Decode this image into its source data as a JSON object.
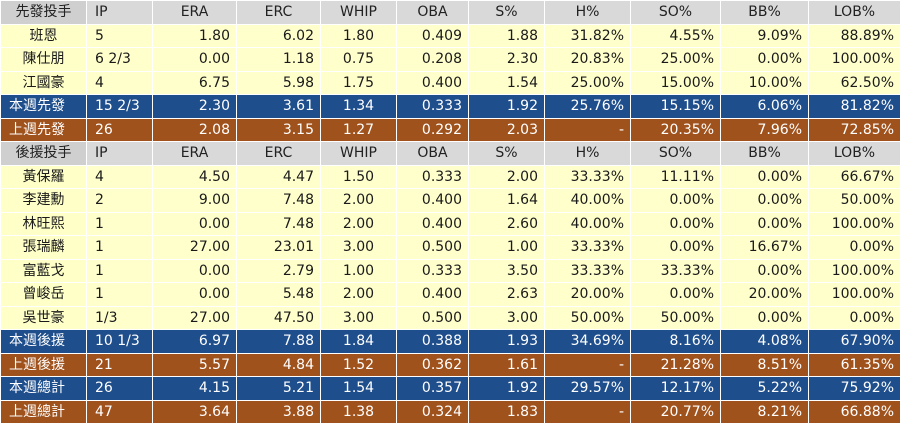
{
  "columns": [
    "IP",
    "ERA",
    "ERC",
    "WHIP",
    "OBA",
    "S%",
    "H%",
    "SO%",
    "BB%",
    "LOB%"
  ],
  "sections": [
    {
      "header": "先發投手",
      "rows": [
        [
          "班恩",
          "5",
          "1.80",
          "6.02",
          "1.80",
          "0.409",
          "1.88",
          "31.82%",
          "4.55%",
          "9.09%",
          "88.89%"
        ],
        [
          "陳仕朋",
          "6 2/3",
          "0.00",
          "1.18",
          "0.75",
          "0.208",
          "2.30",
          "20.83%",
          "25.00%",
          "0.00%",
          "100.00%"
        ],
        [
          "江國豪",
          "4",
          "6.75",
          "5.98",
          "1.75",
          "0.400",
          "1.54",
          "25.00%",
          "15.00%",
          "10.00%",
          "62.50%"
        ]
      ],
      "summaries": [
        {
          "style": "blue",
          "cells": [
            "本週先發",
            "15 2/3",
            "2.30",
            "3.61",
            "1.34",
            "0.333",
            "1.92",
            "25.76%",
            "15.15%",
            "6.06%",
            "81.82%"
          ]
        },
        {
          "style": "brown",
          "cells": [
            "上週先發",
            "26",
            "2.08",
            "3.15",
            "1.27",
            "0.292",
            "2.03",
            "-",
            "20.35%",
            "7.96%",
            "72.85%"
          ]
        }
      ]
    },
    {
      "header": "後援投手",
      "rows": [
        [
          "黃保羅",
          "4",
          "4.50",
          "4.47",
          "1.50",
          "0.333",
          "2.00",
          "33.33%",
          "11.11%",
          "0.00%",
          "66.67%"
        ],
        [
          "李建勳",
          "2",
          "9.00",
          "7.48",
          "2.00",
          "0.400",
          "1.64",
          "40.00%",
          "0.00%",
          "0.00%",
          "50.00%"
        ],
        [
          "林旺熙",
          "1",
          "0.00",
          "7.48",
          "2.00",
          "0.400",
          "2.60",
          "40.00%",
          "0.00%",
          "0.00%",
          "100.00%"
        ],
        [
          "張瑞麟",
          "1",
          "27.00",
          "23.01",
          "3.00",
          "0.500",
          "1.00",
          "33.33%",
          "0.00%",
          "16.67%",
          "0.00%"
        ],
        [
          "富藍戈",
          "1",
          "0.00",
          "2.79",
          "1.00",
          "0.333",
          "3.50",
          "33.33%",
          "33.33%",
          "0.00%",
          "100.00%"
        ],
        [
          "曾峻岳",
          "1",
          "0.00",
          "5.48",
          "2.00",
          "0.400",
          "2.63",
          "20.00%",
          "0.00%",
          "20.00%",
          "100.00%"
        ],
        [
          "吳世豪",
          "1/3",
          "27.00",
          "47.50",
          "3.00",
          "0.500",
          "3.00",
          "50.00%",
          "50.00%",
          "0.00%",
          "0.00%"
        ]
      ],
      "summaries": [
        {
          "style": "blue",
          "cells": [
            "本週後援",
            "10 1/3",
            "6.97",
            "7.88",
            "1.84",
            "0.388",
            "1.93",
            "34.69%",
            "8.16%",
            "4.08%",
            "67.90%"
          ]
        },
        {
          "style": "brown",
          "cells": [
            "上週後援",
            "21",
            "5.57",
            "4.84",
            "1.52",
            "0.362",
            "1.61",
            "-",
            "21.28%",
            "8.51%",
            "61.35%"
          ]
        },
        {
          "style": "blue",
          "cells": [
            "本週總計",
            "26",
            "4.15",
            "5.21",
            "1.54",
            "0.357",
            "1.92",
            "29.57%",
            "12.17%",
            "5.22%",
            "75.92%"
          ]
        },
        {
          "style": "brown",
          "cells": [
            "上週總計",
            "47",
            "3.64",
            "3.88",
            "1.38",
            "0.324",
            "1.83",
            "-",
            "20.77%",
            "8.21%",
            "66.88%"
          ]
        }
      ]
    }
  ],
  "colors": {
    "summary_blue": "#1f4e8c",
    "summary_brown": "#a0521d",
    "player_row": "#ffffcc",
    "header_row": "#d9d9d9"
  }
}
